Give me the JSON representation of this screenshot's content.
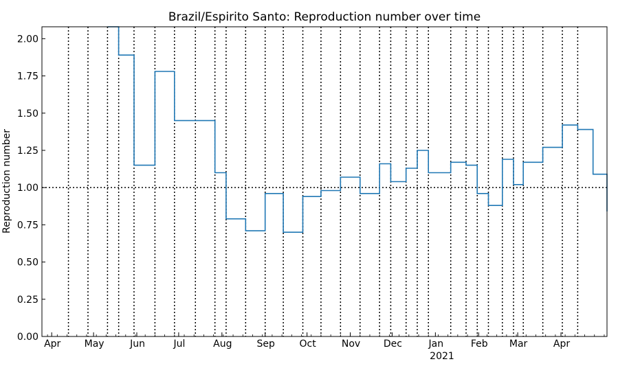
{
  "chart_data": {
    "type": "line",
    "title": "Brazil/Espirito Santo: Reproduction number over time",
    "xlabel": "",
    "ylabel": "Reproduction number",
    "xlim": [
      "2020-03-25",
      "2021-05-04"
    ],
    "ylim": [
      0,
      2.08
    ],
    "y_ticks": [
      "0.00",
      "0.25",
      "0.50",
      "0.75",
      "1.00",
      "1.25",
      "1.50",
      "1.75",
      "2.00"
    ],
    "x_ticks": [
      {
        "date": "2020-04-01",
        "label": "Apr"
      },
      {
        "date": "2020-05-01",
        "label": "May"
      },
      {
        "date": "2020-06-01",
        "label": "Jun"
      },
      {
        "date": "2020-07-01",
        "label": "Jul"
      },
      {
        "date": "2020-08-01",
        "label": "Aug"
      },
      {
        "date": "2020-09-01",
        "label": "Sep"
      },
      {
        "date": "2020-10-01",
        "label": "Oct"
      },
      {
        "date": "2020-11-01",
        "label": "Nov"
      },
      {
        "date": "2020-12-01",
        "label": "Dec"
      },
      {
        "date": "2021-01-01",
        "label": "Jan"
      },
      {
        "date": "2021-02-01",
        "label": "Feb"
      },
      {
        "date": "2021-03-01",
        "label": "Mar"
      },
      {
        "date": "2021-04-01",
        "label": "Apr"
      }
    ],
    "year_label": "2021",
    "reference_line": 1.0,
    "changepoints": [
      "2020-04-13",
      "2020-04-27",
      "2020-05-11",
      "2020-05-19",
      "2020-05-30",
      "2020-06-14",
      "2020-06-28",
      "2020-07-13",
      "2020-07-27",
      "2020-08-04",
      "2020-08-18",
      "2020-09-01",
      "2020-09-14",
      "2020-09-28",
      "2020-10-11",
      "2020-10-25",
      "2020-11-08",
      "2020-11-22",
      "2020-11-30",
      "2020-12-11",
      "2020-12-19",
      "2020-12-27",
      "2021-01-12",
      "2021-01-23",
      "2021-01-31",
      "2021-02-08",
      "2021-02-18",
      "2021-02-26",
      "2021-03-05",
      "2021-03-19",
      "2021-04-02",
      "2021-04-13"
    ],
    "series": [
      {
        "name": "",
        "color": "#1f77b4",
        "step_x": [
          "2020-05-11",
          "2020-05-19",
          "2020-05-30",
          "2020-06-14",
          "2020-06-28",
          "2020-07-27",
          "2020-08-04",
          "2020-08-18",
          "2020-09-01",
          "2020-09-14",
          "2020-09-28",
          "2020-10-11",
          "2020-10-25",
          "2020-11-08",
          "2020-11-22",
          "2020-11-30",
          "2020-12-11",
          "2020-12-19",
          "2020-12-27",
          "2021-01-12",
          "2021-01-23",
          "2021-01-31",
          "2021-02-08",
          "2021-02-18",
          "2021-02-26",
          "2021-03-05",
          "2021-03-19",
          "2021-04-02",
          "2021-04-13",
          "2021-04-24",
          "2021-05-04"
        ],
        "values": [
          2.08,
          1.89,
          1.15,
          1.78,
          1.45,
          1.1,
          0.79,
          0.71,
          0.96,
          0.7,
          0.94,
          0.98,
          1.07,
          0.96,
          1.16,
          1.04,
          1.13,
          1.25,
          1.1,
          1.17,
          1.15,
          0.96,
          0.88,
          1.19,
          1.02,
          1.17,
          1.27,
          1.42,
          1.39,
          1.09,
          0.84
        ]
      }
    ]
  }
}
